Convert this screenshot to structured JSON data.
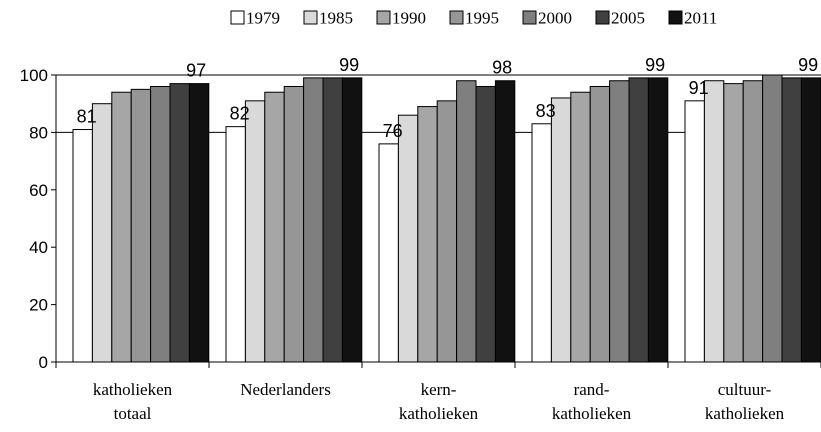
{
  "chart_data": {
    "type": "bar",
    "title": "",
    "xlabel": "",
    "ylabel": "",
    "ylim": [
      0,
      100
    ],
    "yticks": [
      0,
      20,
      40,
      60,
      80,
      100
    ],
    "legend_position": "top",
    "grid": false,
    "categories": [
      [
        "katholieken",
        "totaal"
      ],
      [
        "Nederlanders"
      ],
      [
        "kern-",
        "katholieken"
      ],
      [
        "rand-",
        "katholieken"
      ],
      [
        "cultuur-",
        "katholieken"
      ]
    ],
    "series": [
      {
        "name": "1979",
        "color": "#ffffff",
        "values": [
          81,
          82,
          76,
          83,
          91
        ]
      },
      {
        "name": "1985",
        "color": "#d9d9d9",
        "values": [
          90,
          91,
          86,
          92,
          98
        ]
      },
      {
        "name": "1990",
        "color": "#a6a6a6",
        "values": [
          94,
          94,
          89,
          94,
          97
        ]
      },
      {
        "name": "1995",
        "color": "#969696",
        "values": [
          95,
          96,
          91,
          96,
          98
        ]
      },
      {
        "name": "2000",
        "color": "#7f7f7f",
        "values": [
          96,
          99,
          98,
          98,
          100
        ]
      },
      {
        "name": "2005",
        "color": "#404040",
        "values": [
          97,
          99,
          96,
          99,
          99
        ]
      },
      {
        "name": "2011",
        "color": "#111111",
        "values": [
          97,
          99,
          98,
          99,
          99
        ]
      }
    ],
    "data_labels": [
      {
        "category_index": 0,
        "series_index": 0,
        "text": "81"
      },
      {
        "category_index": 0,
        "series_index": 6,
        "text": "97"
      },
      {
        "category_index": 1,
        "series_index": 0,
        "text": "82"
      },
      {
        "category_index": 1,
        "series_index": 6,
        "text": "99"
      },
      {
        "category_index": 2,
        "series_index": 0,
        "text": "76"
      },
      {
        "category_index": 2,
        "series_index": 6,
        "text": "98"
      },
      {
        "category_index": 3,
        "series_index": 0,
        "text": "83"
      },
      {
        "category_index": 3,
        "series_index": 6,
        "text": "99"
      },
      {
        "category_index": 4,
        "series_index": 0,
        "text": "91"
      },
      {
        "category_index": 4,
        "series_index": 6,
        "text": "99"
      }
    ]
  }
}
